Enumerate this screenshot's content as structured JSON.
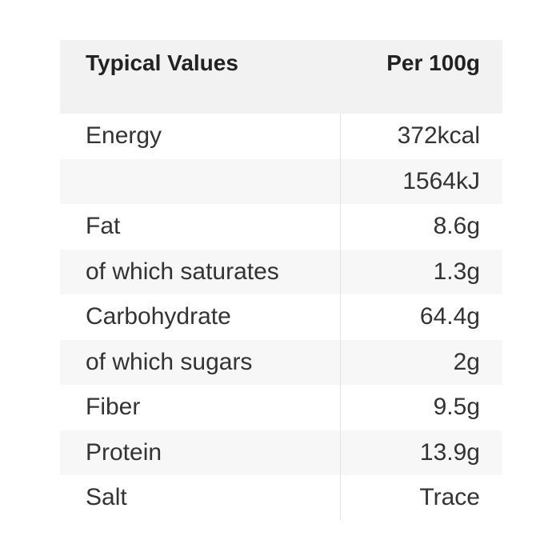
{
  "table": {
    "header": [
      "Typical Values",
      "Per 100g"
    ],
    "rows": [
      [
        "Energy",
        "372kcal"
      ],
      [
        null,
        "1564kJ"
      ],
      [
        "Fat",
        "8.6g"
      ],
      [
        "of which saturates",
        "1.3g"
      ],
      [
        "Carbohydrate",
        "64.4g"
      ],
      [
        "of which sugars",
        "2g"
      ],
      [
        "Fiber",
        "9.5g"
      ],
      [
        "Protein",
        "13.9g"
      ],
      [
        "Salt",
        "Trace"
      ]
    ]
  }
}
